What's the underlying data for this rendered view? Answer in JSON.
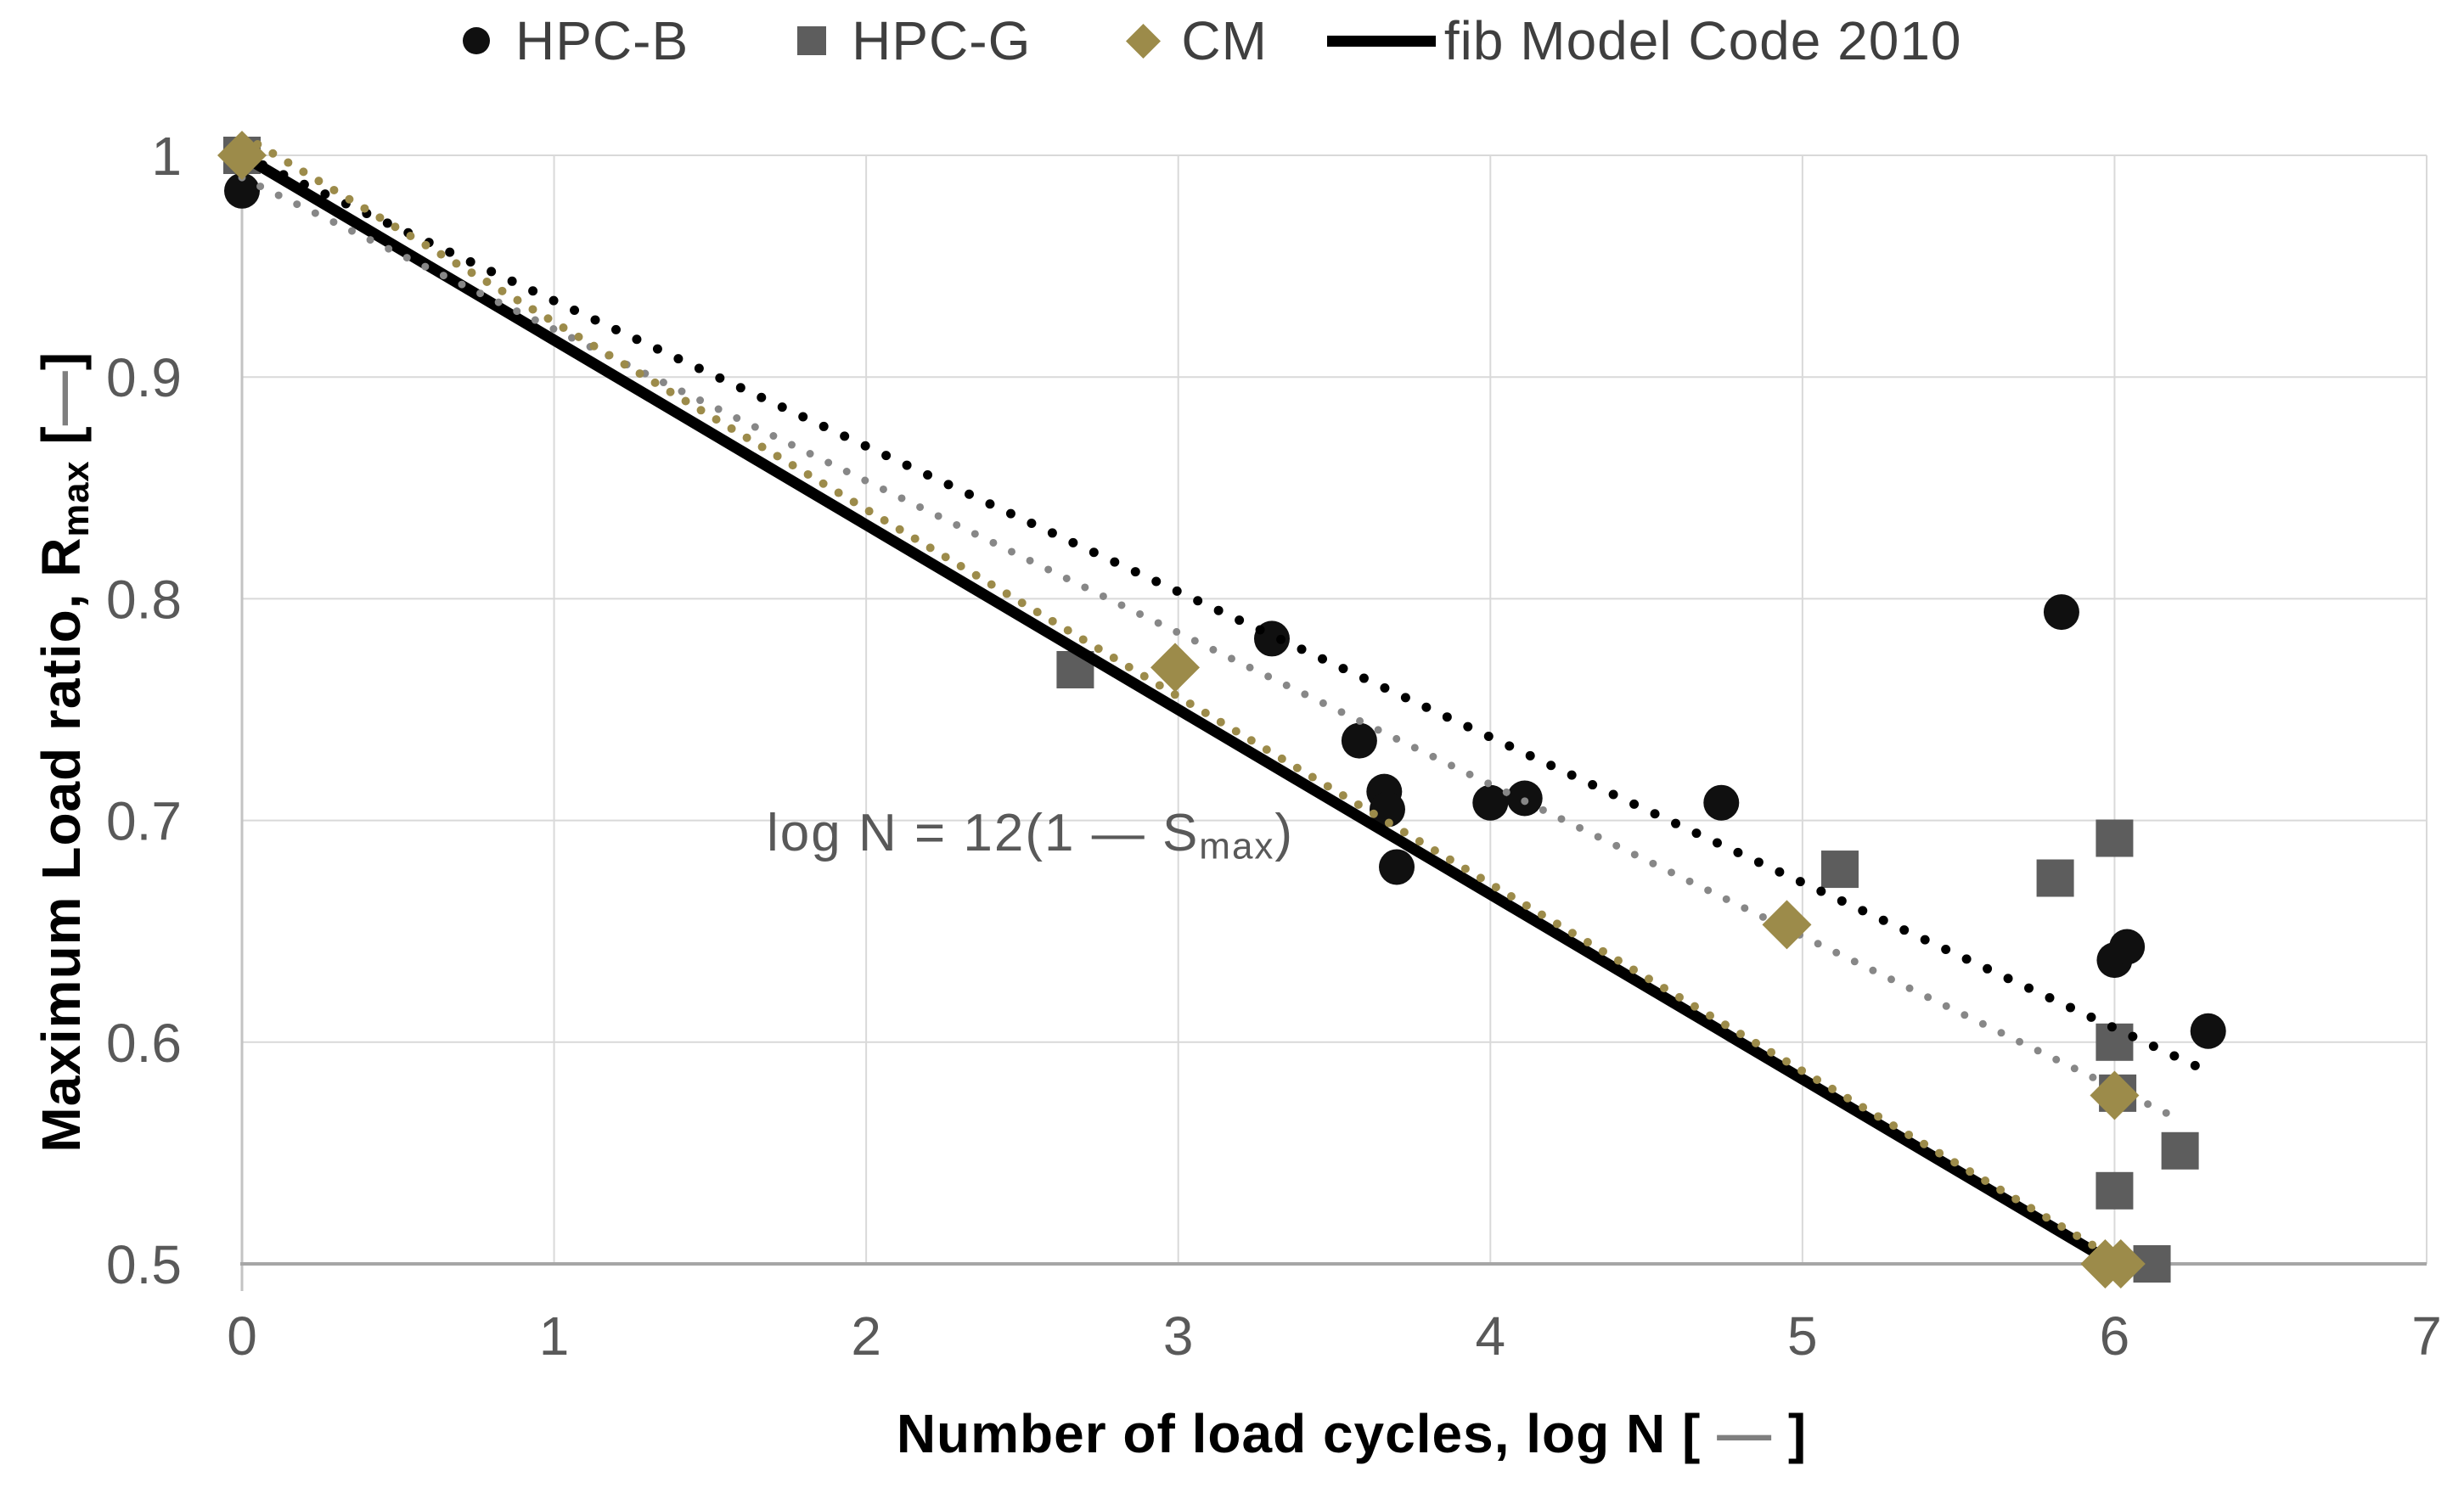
{
  "legend": {
    "items": [
      {
        "label": "HPC-B",
        "marker": "circle-icon"
      },
      {
        "label": "HPC-G",
        "marker": "square-icon"
      },
      {
        "label": "CM",
        "marker": "diamond-icon"
      },
      {
        "label": "fib Model Code 2010",
        "marker": "line-icon"
      }
    ]
  },
  "y_axis": {
    "title_prefix": "Maximum Load ratio, R",
    "title_sub": "max",
    "title_open": " [",
    "title_dash": "—",
    "title_close": "]"
  },
  "x_axis": {
    "title_prefix": "Number of load cycles, log N [ ",
    "title_dash": "—",
    "title_close": " ]"
  },
  "annotation": {
    "prefix": "log N = 12(1 — S",
    "sub": "max",
    "suffix": ")"
  },
  "chart_data": {
    "type": "scatter",
    "title": "",
    "xlabel": "Number of load cycles, log N [ — ]",
    "ylabel": "Maximum Load ratio, Rmax [—]",
    "xlim": [
      0,
      7
    ],
    "ylim": [
      0.5,
      1.0
    ],
    "x_ticks": [
      "0",
      "1",
      "2",
      "3",
      "4",
      "5",
      "6",
      "7"
    ],
    "x_tick_values": [
      0,
      1,
      2,
      3,
      4,
      5,
      6,
      7
    ],
    "y_ticks": [
      "1",
      "0.9",
      "0.8",
      "0.7",
      "0.6",
      "0.5"
    ],
    "y_tick_values": [
      1.0,
      0.9,
      0.8,
      0.7,
      0.6,
      0.5
    ],
    "grid": true,
    "legend_position": "top",
    "annotation_text": "log N = 12(1 — Smax)",
    "annotation_at": [
      1.7,
      0.69
    ],
    "colors": {
      "hpcb": "#101010",
      "hpcg": "#5d5d5d",
      "cm": "#9c8b4a",
      "grid": "#d9d9d9",
      "axis": "#a6a6a6",
      "tick_text": "#595959"
    },
    "series": [
      {
        "name": "HPC-B",
        "marker": "circle",
        "color": "#101010",
        "points": [
          [
            0,
            0.984
          ],
          [
            3.3,
            0.782
          ],
          [
            3.58,
            0.736
          ],
          [
            3.66,
            0.713
          ],
          [
            3.67,
            0.705
          ],
          [
            3.7,
            0.679
          ],
          [
            4.0,
            0.708
          ],
          [
            4.11,
            0.71
          ],
          [
            4.74,
            0.708
          ],
          [
            5.83,
            0.794
          ],
          [
            6.0,
            0.637
          ],
          [
            6.04,
            0.643
          ],
          [
            6.3,
            0.605
          ]
        ]
      },
      {
        "name": "HPC-G",
        "marker": "square",
        "color": "#5d5d5d",
        "points": [
          [
            0,
            1.0
          ],
          [
            2.67,
            0.768
          ],
          [
            5.12,
            0.678
          ],
          [
            5.81,
            0.674
          ],
          [
            6.0,
            0.692
          ],
          [
            6.0,
            0.6
          ],
          [
            6.01,
            0.577
          ],
          [
            6.0,
            0.533
          ],
          [
            6.12,
            0.5
          ],
          [
            6.21,
            0.551
          ]
        ]
      },
      {
        "name": "CM",
        "marker": "diamond",
        "color": "#9c8b4a",
        "points": [
          [
            0,
            1.0
          ],
          [
            2.99,
            0.769
          ],
          [
            4.95,
            0.653
          ],
          [
            6.0,
            0.576
          ],
          [
            5.97,
            0.5
          ],
          [
            6.02,
            0.5
          ]
        ]
      }
    ],
    "lines": [
      {
        "name": "fib Model Code 2010",
        "style": "solid",
        "color": "#000000",
        "width": 13,
        "from": [
          0,
          1.0
        ],
        "to": [
          6.0,
          0.5
        ]
      },
      {
        "name": "HPC-B trendline",
        "style": "dotted",
        "color": "#000000",
        "width": 11,
        "gap": 27,
        "from": [
          0,
          1.0
        ],
        "to": [
          6.28,
          0.588
        ]
      },
      {
        "name": "HPC-G trendline",
        "style": "dotted",
        "color": "#878787",
        "width": 9,
        "gap": 24,
        "from": [
          0,
          0.99
        ],
        "to": [
          6.21,
          0.565
        ]
      },
      {
        "name": "CM trendline",
        "style": "dotted",
        "color": "#9c8b4a",
        "width": 10,
        "gap": 21,
        "from": [
          0.05,
          1.005
        ],
        "to": [
          6.03,
          0.5
        ]
      }
    ]
  }
}
